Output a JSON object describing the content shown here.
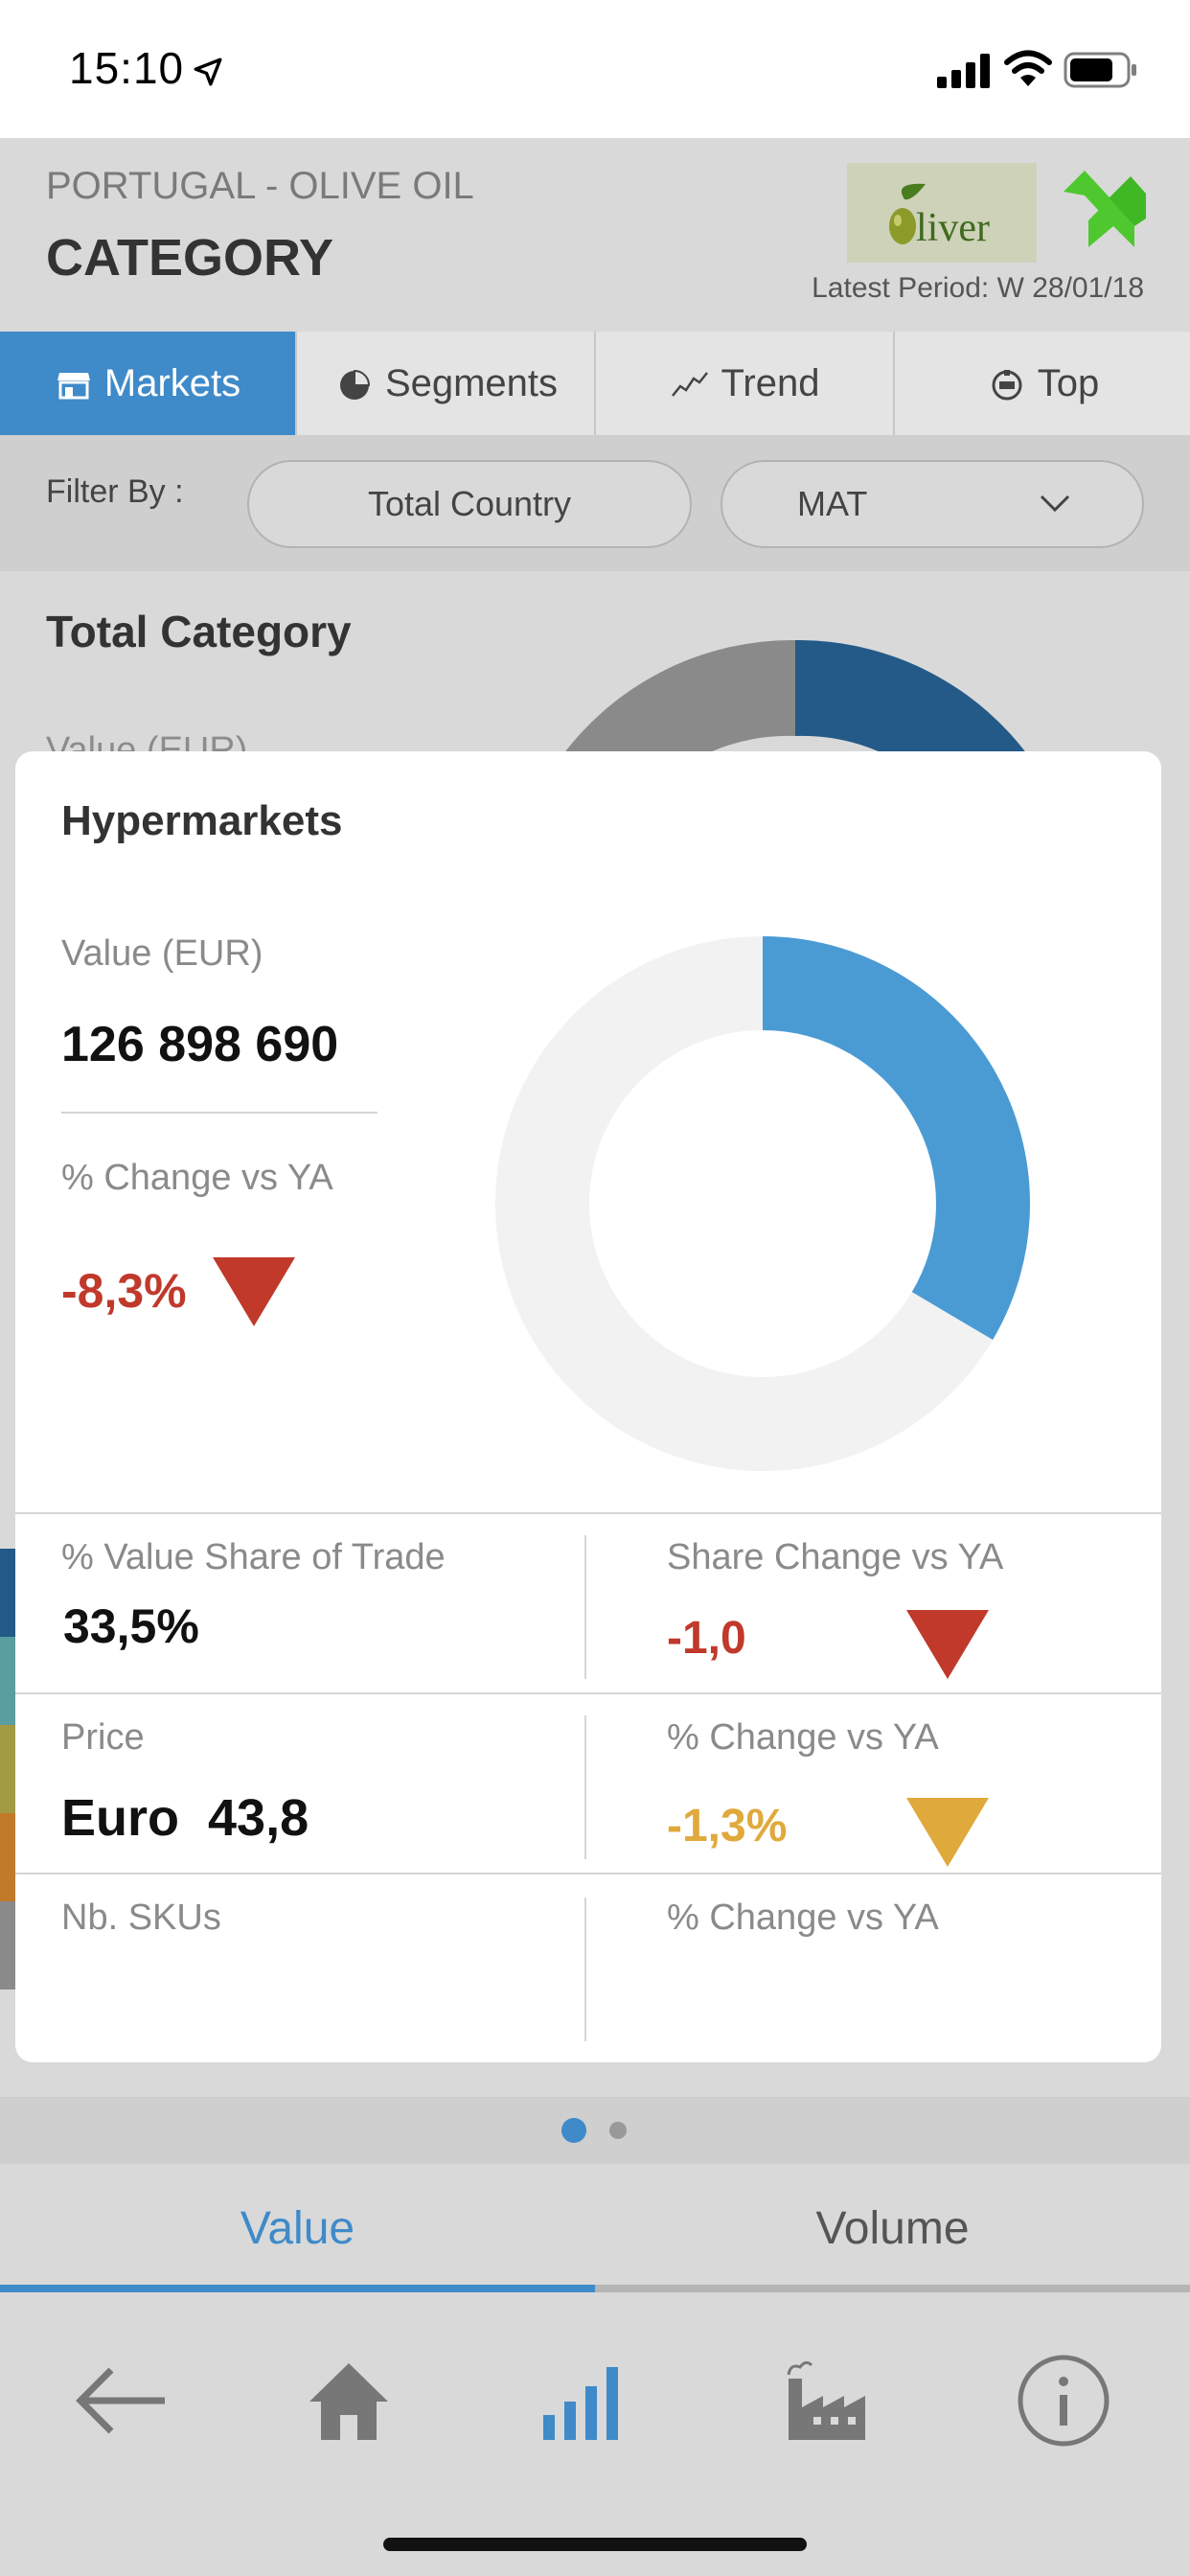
{
  "status_bar": {
    "time": "15:10"
  },
  "header": {
    "country": "PORTUGAL - OLIVE OIL",
    "title": "CATEGORY",
    "logo_text": "liver",
    "latest_period": "Latest Period: W 28/01/18"
  },
  "tabs": [
    {
      "label": "Markets",
      "icon": "store-icon",
      "active": true
    },
    {
      "label": "Segments",
      "icon": "pie-icon",
      "active": false
    },
    {
      "label": "Trend",
      "icon": "trend-icon",
      "active": false
    },
    {
      "label": "Top",
      "icon": "top-icon",
      "active": false
    }
  ],
  "filter": {
    "label": "Filter By :",
    "country_value": "Total Country",
    "period_value": "MAT"
  },
  "background": {
    "section_title": "Total Category",
    "value_label": "Value (EUR)"
  },
  "card": {
    "title": "Hypermarkets",
    "value_label": "Value (EUR)",
    "value": "126 898 690",
    "change_label": "% Change vs YA",
    "change_value": "-8,3%",
    "donut_share_percent": 33.5,
    "donut_color": "#4a9bd4",
    "metrics": [
      {
        "left_label": "% Value Share of Trade",
        "left_value": "33,5%",
        "right_label": "Share Change vs YA",
        "right_value": "-1,0",
        "right_status": "negative"
      },
      {
        "left_label": "Price",
        "left_value": "Euro  43,8",
        "right_label": "% Change vs YA",
        "right_value": "-1,3%",
        "right_status": "warning"
      },
      {
        "left_label": "Nb. SKUs",
        "left_value": "",
        "right_label": "% Change vs YA",
        "right_value": "",
        "right_status": "none"
      }
    ]
  },
  "pagination": {
    "pages": 2,
    "current": 1
  },
  "value_volume": {
    "value_label": "Value",
    "volume_label": "Volume",
    "active": "Value"
  },
  "bottom_nav": [
    {
      "icon": "back-arrow-icon"
    },
    {
      "icon": "home-icon"
    },
    {
      "icon": "bar-chart-icon"
    },
    {
      "icon": "factory-icon"
    },
    {
      "icon": "info-icon"
    }
  ],
  "colors": {
    "accent": "#3f8ac9",
    "negative": "#c0392b",
    "warning": "#e0a93b",
    "logo_green": "#4fc82f"
  }
}
